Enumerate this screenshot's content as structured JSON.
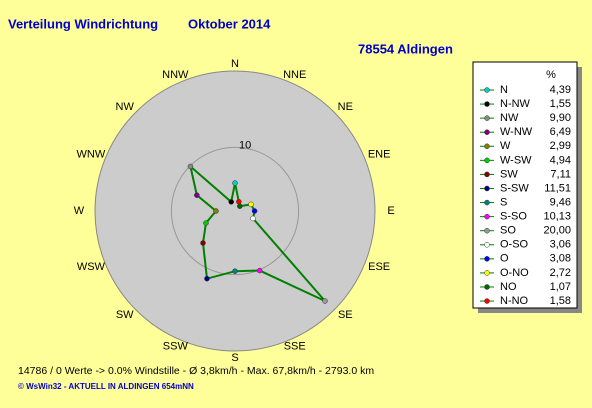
{
  "chart_data": {
    "type": "radar",
    "title": "Verteilung Windrichtung",
    "subtitle": "Oktober 2014",
    "location": "78554 Aldingen",
    "directions": [
      "N",
      "NNE",
      "NE",
      "ENE",
      "E",
      "ESE",
      "SE",
      "SSE",
      "S",
      "SSW",
      "SW",
      "WSW",
      "W",
      "WNW",
      "NW",
      "NNW"
    ],
    "legend_header": "%",
    "categories": [
      "N",
      "N-NW",
      "NW",
      "W-NW",
      "W",
      "W-SW",
      "SW",
      "S-SW",
      "S",
      "S-SO",
      "SO",
      "O-SO",
      "O",
      "O-NO",
      "NO",
      "N-NO"
    ],
    "values": [
      4.39,
      1.55,
      9.9,
      6.49,
      2.99,
      4.94,
      7.11,
      11.51,
      9.46,
      10.13,
      20.0,
      3.06,
      3.08,
      2.72,
      1.07,
      1.58
    ],
    "value_labels": [
      "4,39",
      "1,55",
      "9,90",
      "6,49",
      "2,99",
      "4,94",
      "7,11",
      "11,51",
      "9,46",
      "10,13",
      "20,00",
      "3,06",
      "3,08",
      "2,72",
      "1,07",
      "1,58"
    ],
    "point_colors": [
      "#00cccc",
      "#000000",
      "#888888",
      "#800080",
      "#808000",
      "#00cc00",
      "#800000",
      "#000080",
      "#008080",
      "#ff00ff",
      "#999999",
      "#ffffff",
      "#0000ff",
      "#ffff00",
      "#006600",
      "#ff0000"
    ],
    "line_color": "#008000",
    "rlim": [
      0,
      22
    ],
    "rticks": [
      10
    ],
    "footer": "14786 / 0 Werte  -> 0.0% Windstille   -   Ø 3,8km/h   -   Max. 67,8km/h   -   2793.0 km",
    "credit": "© WsWin32  -  AKTUELL IN ALDINGEN 654mNN"
  }
}
